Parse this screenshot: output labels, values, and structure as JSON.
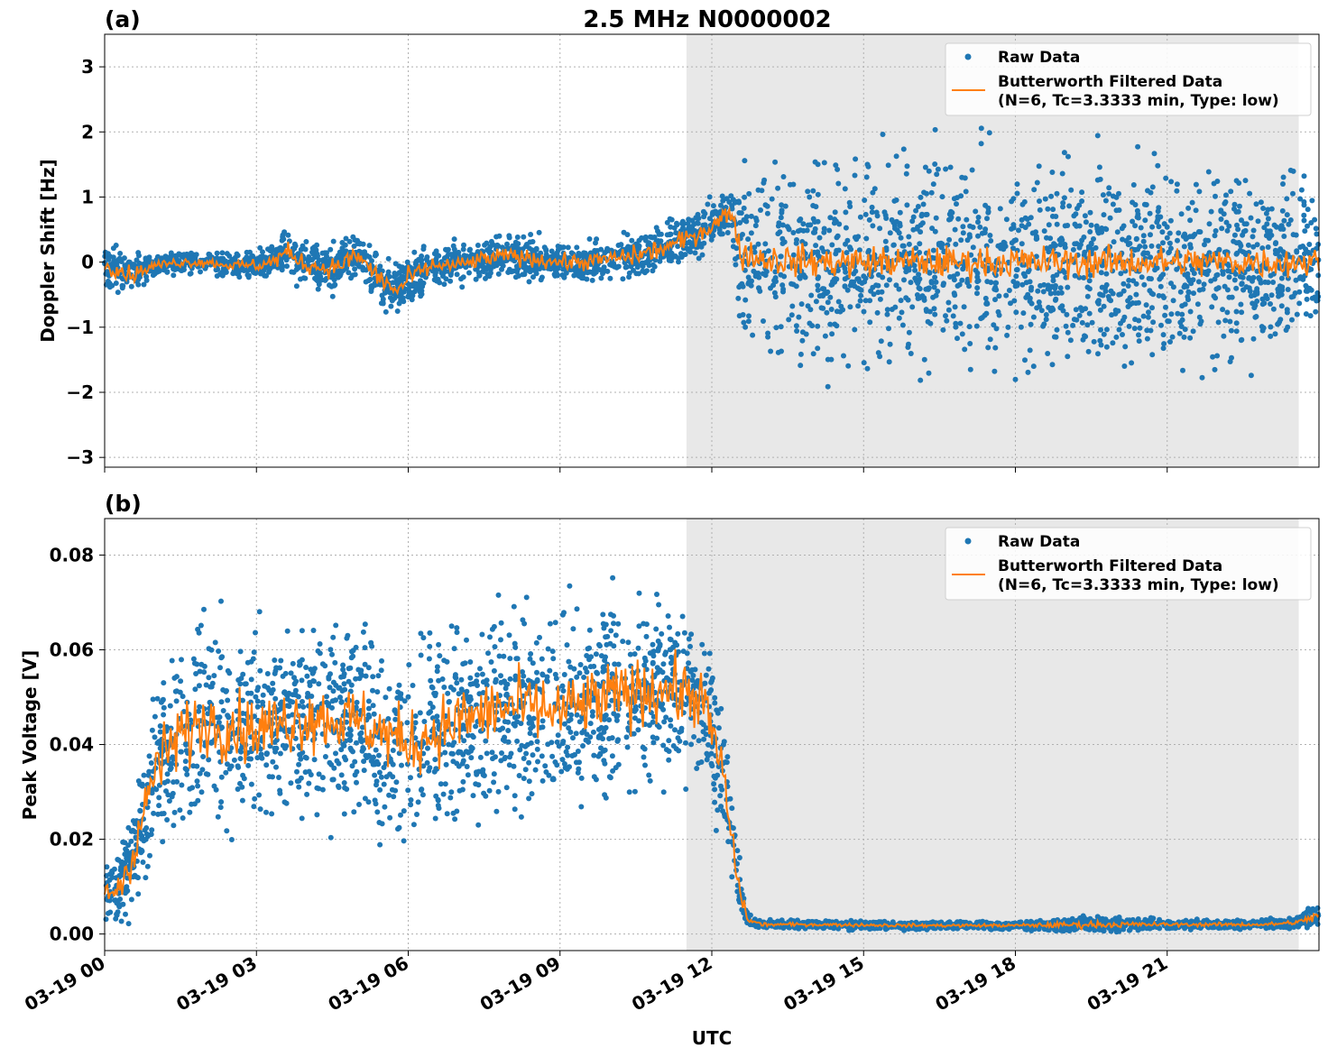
{
  "figure": {
    "title": "2.5 MHz N0000002",
    "xlabel": "UTC",
    "x_tick_labels": [
      "03-19 00",
      "03-19 03",
      "03-19 06",
      "03-19 09",
      "03-19 12",
      "03-19 15",
      "03-19 18",
      "03-19 21"
    ],
    "shaded_region_hours": [
      11.5,
      23.6
    ],
    "colors": {
      "raw": "#1f77b4",
      "filtered": "#ff7f0e",
      "shade": "#e8e8e8",
      "grid": "#b0b0b0"
    },
    "grid": true,
    "legend_position": "top-right",
    "legend": {
      "raw_label": "Raw Data",
      "filt_line1": "Butterworth Filtered Data",
      "filt_line2": "(N=6, Tc=3.3333 min, Type: low)"
    }
  },
  "chart_data": [
    {
      "type": "scatter",
      "panel_label": "(a)",
      "ylabel": "Doppler Shift [Hz]",
      "xlim_hours": [
        0,
        24
      ],
      "ylim": [
        -3.15,
        3.5
      ],
      "y_ticks": [
        3,
        2,
        1,
        0,
        -1,
        -2,
        -3
      ],
      "y_tick_labels": [
        "3",
        "2",
        "1",
        "0",
        "−1",
        "−2",
        "−3"
      ],
      "series": [
        {
          "name": "Raw Data",
          "x_hours": [
            0,
            0.5,
            1,
            1.5,
            2,
            2.5,
            3,
            3.3,
            3.6,
            4,
            4.5,
            5,
            5.5,
            5.8,
            6,
            6.5,
            7,
            7.5,
            8,
            8.5,
            9,
            9.5,
            10,
            10.5,
            11,
            11.5,
            12,
            12.4,
            12.55,
            13,
            14,
            15,
            16,
            17,
            18,
            19,
            20,
            21,
            22,
            23,
            24
          ],
          "center": [
            0.0,
            -0.2,
            -0.05,
            0.0,
            0.0,
            -0.05,
            -0.05,
            0.0,
            0.15,
            -0.05,
            -0.1,
            0.1,
            -0.3,
            -0.45,
            -0.25,
            -0.05,
            -0.05,
            0.05,
            0.1,
            0.05,
            0.0,
            0.0,
            0.05,
            0.1,
            0.2,
            0.35,
            0.55,
            0.8,
            0.15,
            0.05,
            0.0,
            0.0,
            0.0,
            0.0,
            0.0,
            0.0,
            0.0,
            0.0,
            0.0,
            0.0,
            0.0
          ],
          "spread": [
            0.3,
            0.25,
            0.15,
            0.15,
            0.15,
            0.15,
            0.2,
            0.25,
            0.3,
            0.25,
            0.3,
            0.3,
            0.3,
            0.3,
            0.3,
            0.25,
            0.25,
            0.25,
            0.25,
            0.25,
            0.25,
            0.25,
            0.25,
            0.3,
            0.3,
            0.3,
            0.3,
            0.3,
            1.0,
            1.25,
            1.3,
            1.3,
            1.3,
            1.3,
            1.3,
            1.3,
            1.3,
            1.3,
            1.3,
            1.2,
            1.0
          ]
        },
        {
          "name": "Butterworth Filtered Data",
          "x_hours": [
            0,
            0.5,
            1,
            1.5,
            2,
            2.5,
            3,
            3.3,
            3.6,
            4,
            4.5,
            5,
            5.5,
            5.8,
            6,
            6.5,
            7,
            7.5,
            8,
            8.5,
            9,
            9.5,
            10,
            10.5,
            11,
            11.5,
            12,
            12.4,
            12.55,
            13,
            14,
            15,
            16,
            17,
            18,
            19,
            20,
            21,
            22,
            23,
            24
          ],
          "values": [
            0.0,
            -0.2,
            -0.05,
            0.0,
            0.0,
            -0.05,
            -0.05,
            0.0,
            0.15,
            -0.05,
            -0.1,
            0.1,
            -0.3,
            -0.45,
            -0.25,
            -0.05,
            -0.05,
            0.05,
            0.1,
            0.05,
            0.0,
            0.0,
            0.05,
            0.1,
            0.2,
            0.35,
            0.55,
            0.8,
            0.15,
            0.05,
            0.0,
            0.0,
            0.0,
            0.0,
            0.0,
            0.0,
            0.0,
            0.0,
            0.0,
            0.0,
            0.0
          ]
        }
      ]
    },
    {
      "type": "scatter",
      "panel_label": "(b)",
      "ylabel": "Peak Voltage [V]",
      "xlim_hours": [
        0,
        24
      ],
      "ylim": [
        -0.0035,
        0.0877
      ],
      "y_ticks": [
        0.08,
        0.06,
        0.04,
        0.02,
        0.0
      ],
      "y_tick_labels": [
        "0.08",
        "0.06",
        "0.04",
        "0.02",
        "0.00"
      ],
      "series": [
        {
          "name": "Raw Data",
          "x_hours": [
            0,
            0.3,
            0.6,
            1,
            1.5,
            2,
            3,
            4,
            5,
            6,
            7,
            8,
            9,
            10,
            11,
            11.8,
            12.2,
            12.5,
            12.7,
            13,
            14,
            16,
            18,
            19.5,
            21,
            22,
            23,
            23.6,
            24
          ],
          "center": [
            0.008,
            0.01,
            0.018,
            0.035,
            0.042,
            0.045,
            0.043,
            0.046,
            0.045,
            0.04,
            0.045,
            0.048,
            0.047,
            0.05,
            0.052,
            0.05,
            0.035,
            0.012,
            0.003,
            0.002,
            0.002,
            0.0018,
            0.0018,
            0.002,
            0.002,
            0.002,
            0.002,
            0.0025,
            0.004
          ],
          "spread": [
            0.006,
            0.006,
            0.01,
            0.015,
            0.017,
            0.017,
            0.017,
            0.017,
            0.017,
            0.017,
            0.017,
            0.017,
            0.017,
            0.017,
            0.015,
            0.012,
            0.012,
            0.006,
            0.001,
            0.0008,
            0.0007,
            0.0007,
            0.0007,
            0.0015,
            0.0008,
            0.0008,
            0.0008,
            0.001,
            0.0025
          ]
        },
        {
          "name": "Butterworth Filtered Data",
          "x_hours": [
            0,
            0.3,
            0.6,
            1,
            1.5,
            2,
            3,
            4,
            5,
            6,
            7,
            8,
            9,
            10,
            11,
            11.8,
            12.2,
            12.5,
            12.7,
            13,
            14,
            16,
            18,
            19.5,
            21,
            22,
            23,
            23.6,
            24
          ],
          "values": [
            0.008,
            0.01,
            0.018,
            0.035,
            0.042,
            0.045,
            0.043,
            0.046,
            0.045,
            0.04,
            0.045,
            0.048,
            0.047,
            0.05,
            0.052,
            0.05,
            0.035,
            0.012,
            0.003,
            0.002,
            0.002,
            0.0018,
            0.0018,
            0.002,
            0.002,
            0.002,
            0.002,
            0.0025,
            0.004
          ]
        }
      ]
    }
  ]
}
